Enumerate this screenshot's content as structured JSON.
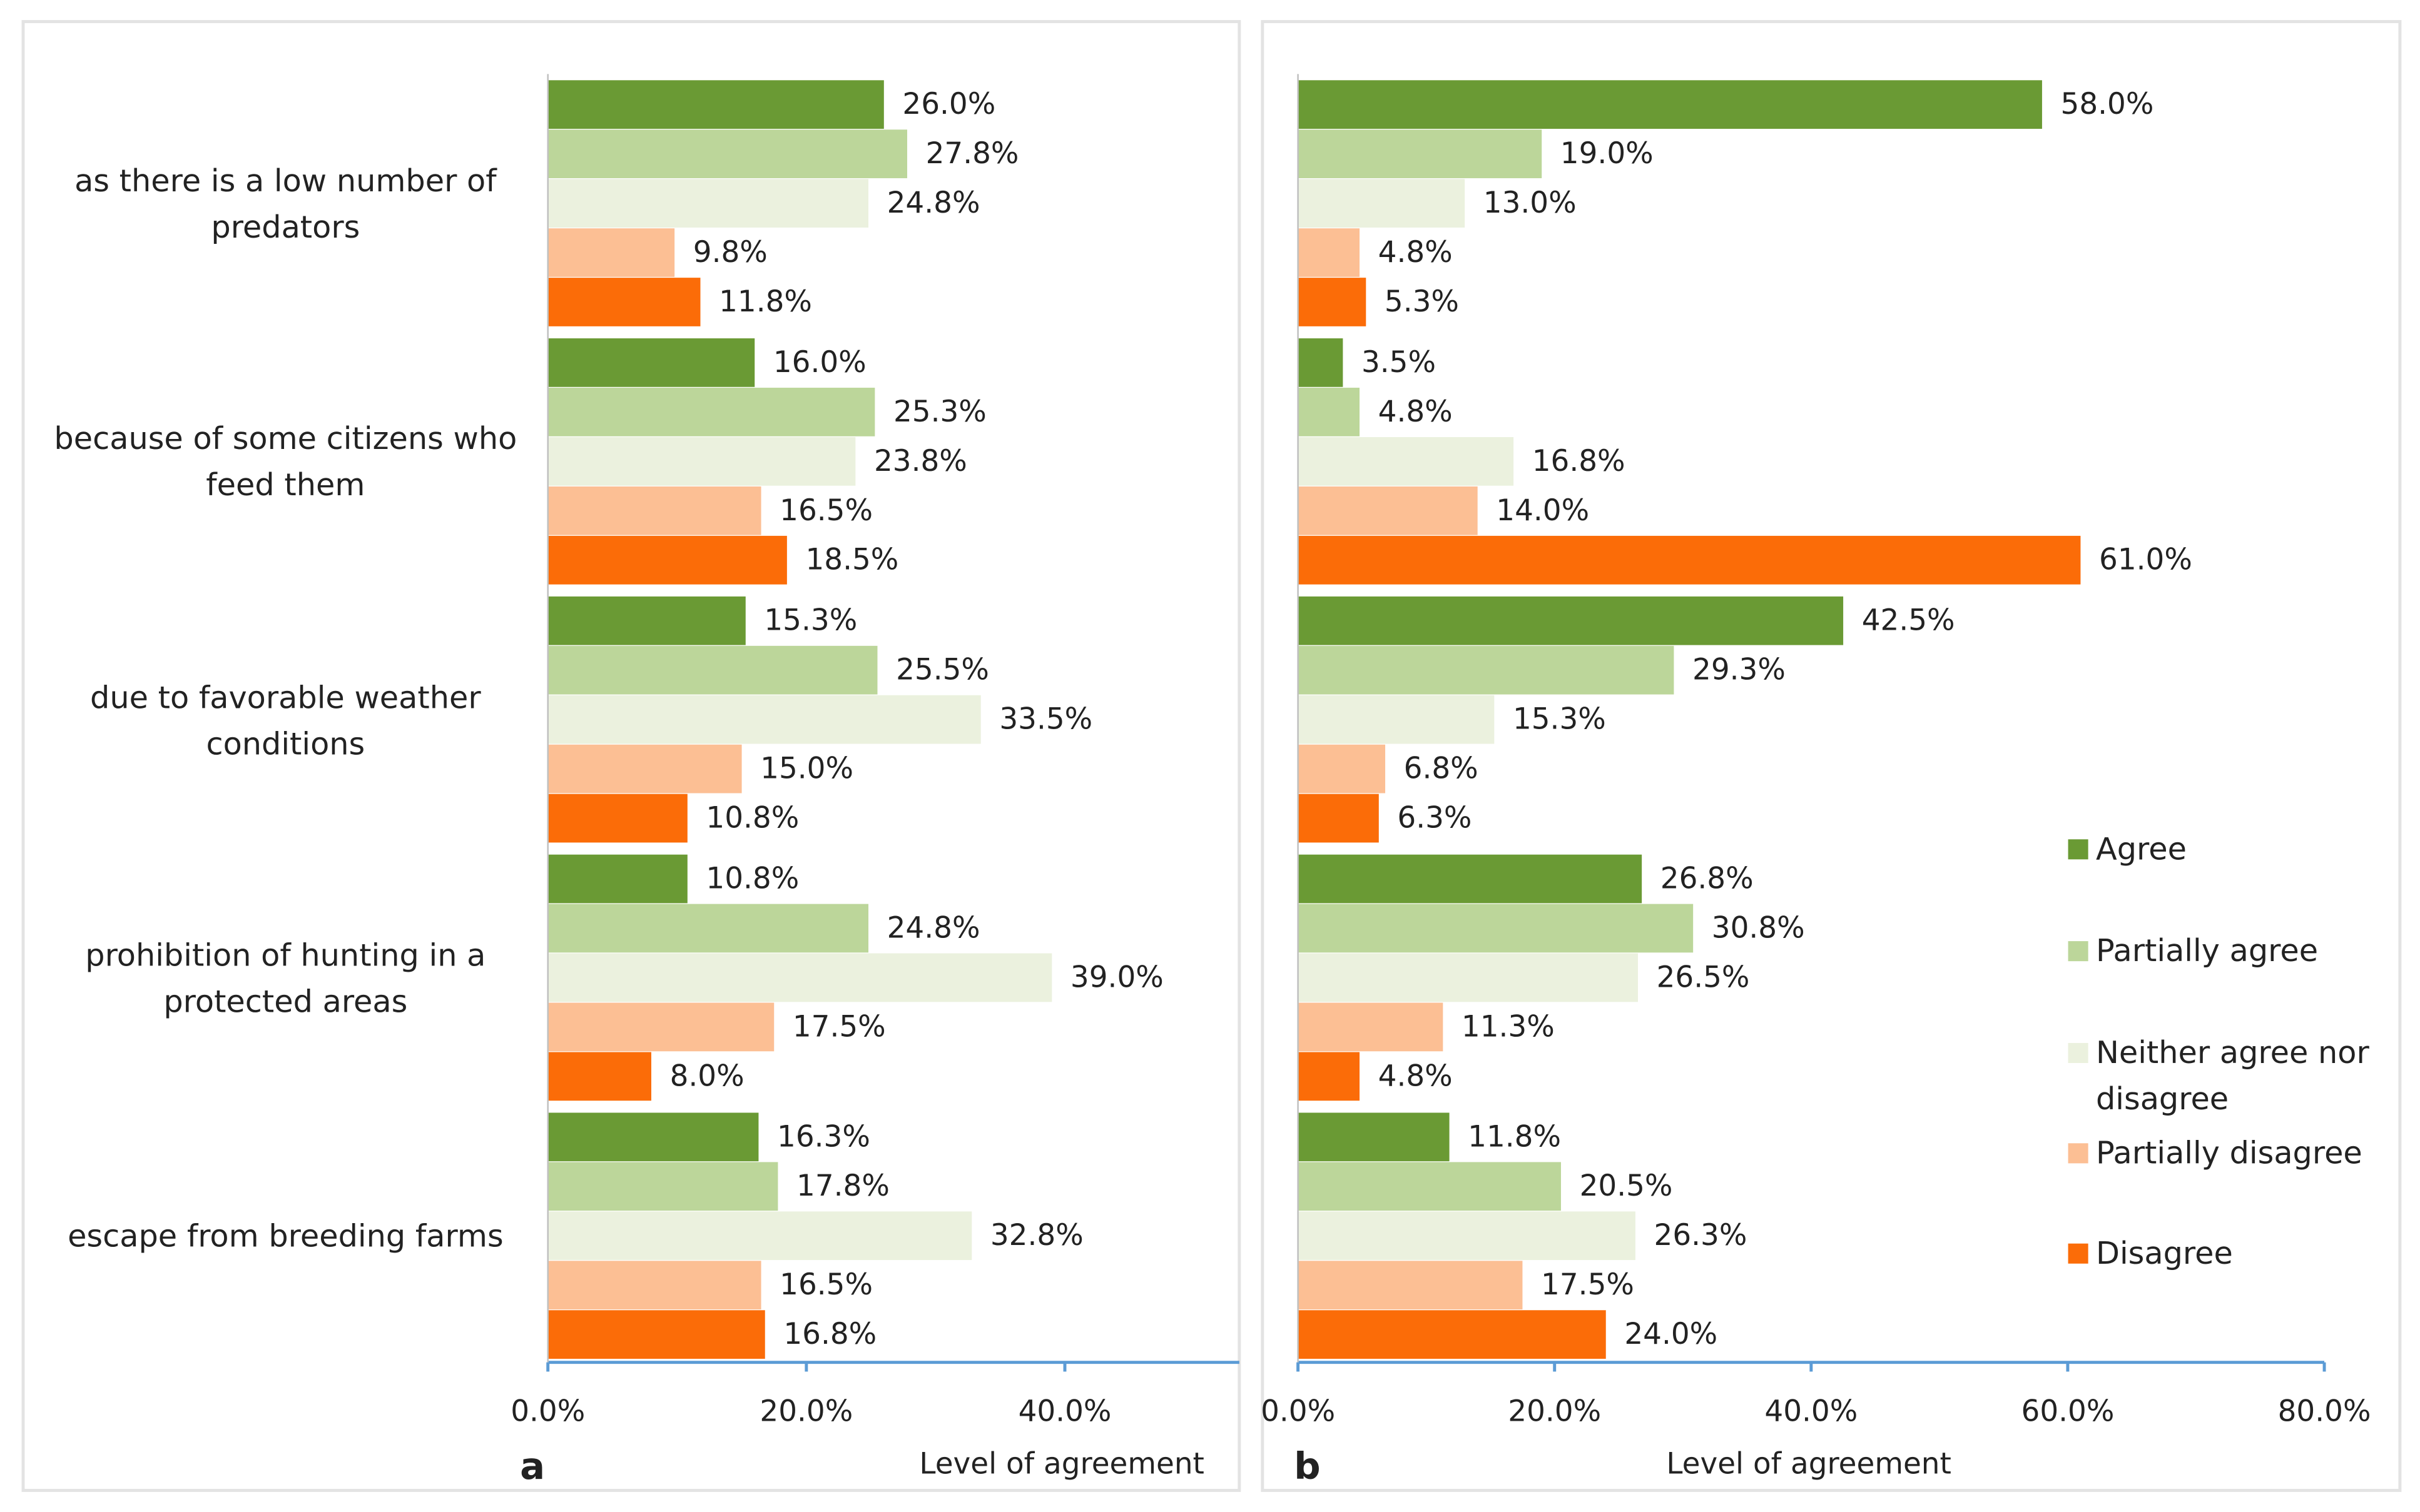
{
  "chart_data": [
    {
      "type": "bar",
      "orientation": "horizontal",
      "panel_label": "a",
      "x_label": "Level of agreement",
      "categories": [
        "as there is a low number of predators",
        "because of some citizens who feed them",
        "due to favorable weather conditions",
        "prohibition of hunting in a protected areas",
        "escape from breeding farms"
      ],
      "series": [
        {
          "color": "#6a9a34",
          "values": [
            26.0,
            16.0,
            15.3,
            10.8,
            16.3
          ],
          "value_labels": [
            "26.0%",
            "16.0%",
            "15.3%",
            "10.8%",
            "16.3%"
          ]
        },
        {
          "color": "#bcd69a",
          "values": [
            27.8,
            25.3,
            25.5,
            24.8,
            17.8
          ],
          "value_labels": [
            "27.8%",
            "25.3%",
            "25.5%",
            "24.8%",
            "17.8%"
          ]
        },
        {
          "color": "#ebf1de",
          "values": [
            24.8,
            23.8,
            33.5,
            39.0,
            32.8
          ],
          "value_labels": [
            "24.8%",
            "23.8%",
            "33.5%",
            "39.0%",
            "32.8%"
          ]
        },
        {
          "color": "#fcbf94",
          "values": [
            9.8,
            16.5,
            15.0,
            17.5,
            16.5
          ],
          "value_labels": [
            "9.8%",
            "16.5%",
            "15.0%",
            "17.5%",
            "16.5%"
          ]
        },
        {
          "color": "#fb6c08",
          "values": [
            11.8,
            18.5,
            10.8,
            8.0,
            16.8
          ],
          "value_labels": [
            "11.8%",
            "18.5%",
            "10.8%",
            "8.0%",
            "16.8%"
          ]
        }
      ],
      "xlim": [
        0,
        53.5
      ],
      "xticks": [
        {
          "value": 0,
          "label": "0.0%"
        },
        {
          "value": 20,
          "label": "20.0%"
        },
        {
          "value": 40,
          "label": "40.0%"
        }
      ]
    },
    {
      "type": "bar",
      "orientation": "horizontal",
      "panel_label": "b",
      "x_label": "Level of agreement",
      "legend": "right",
      "series": [
        {
          "name": "Agree",
          "color": "#6a9a34",
          "values": [
            58.0,
            3.5,
            42.5,
            26.8,
            11.8
          ],
          "value_labels": [
            "58.0%",
            "3.5%",
            "42.5%",
            "26.8%",
            "11.8%"
          ]
        },
        {
          "name": "Partially agree",
          "color": "#bcd69a",
          "values": [
            19.0,
            4.8,
            29.3,
            30.8,
            20.5
          ],
          "value_labels": [
            "19.0%",
            "4.8%",
            "29.3%",
            "30.8%",
            "20.5%"
          ]
        },
        {
          "name": "Neither agree nor disagree",
          "color": "#ebf1de",
          "values": [
            13.0,
            16.8,
            15.3,
            26.5,
            26.3
          ],
          "value_labels": [
            "13.0%",
            "16.8%",
            "15.3%",
            "26.5%",
            "26.3%"
          ]
        },
        {
          "name": "Partially disagree",
          "color": "#fcbf94",
          "values": [
            4.8,
            14.0,
            6.8,
            11.3,
            17.5
          ],
          "value_labels": [
            "4.8%",
            "14.0%",
            "6.8%",
            "11.3%",
            "17.5%"
          ]
        },
        {
          "name": "Disagree",
          "color": "#fb6c08",
          "values": [
            5.3,
            61.0,
            6.3,
            4.8,
            24.0
          ],
          "value_labels": [
            "5.3%",
            "61.0%",
            "6.3%",
            "4.8%",
            "24.0%"
          ]
        }
      ],
      "xlim": [
        0,
        80
      ],
      "xticks": [
        {
          "value": 0,
          "label": "0.0%"
        },
        {
          "value": 20,
          "label": "20.0%"
        },
        {
          "value": 40,
          "label": "40.0%"
        },
        {
          "value": 60,
          "label": "60.0%"
        },
        {
          "value": 80,
          "label": "80.0%"
        }
      ]
    }
  ]
}
